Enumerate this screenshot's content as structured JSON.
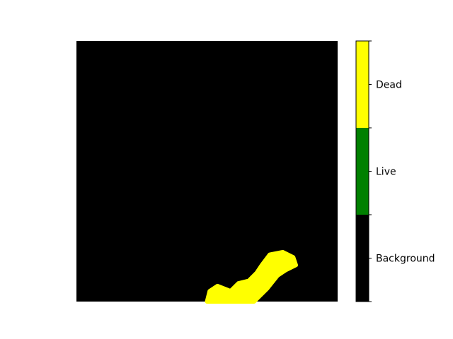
{
  "chart_data": {
    "type": "heatmap",
    "title": "",
    "xlabel": "",
    "ylabel": "",
    "axes_visible": false,
    "classes": [
      {
        "value": 0,
        "label": "Background",
        "color": "#000000"
      },
      {
        "value": 1,
        "label": "Live",
        "color": "#008000"
      },
      {
        "value": 2,
        "label": "Dead",
        "color": "#ffff00"
      }
    ],
    "colorbar": {
      "position": "right",
      "ticks": [
        "Background",
        "Live",
        "Dead"
      ]
    },
    "regions": [
      {
        "class": "Dead",
        "description_points_normalized_image": [
          [
            0.5,
            1.0
          ],
          [
            0.51,
            0.96
          ],
          [
            0.54,
            0.94
          ],
          [
            0.59,
            0.96
          ],
          [
            0.62,
            0.93
          ],
          [
            0.66,
            0.92
          ],
          [
            0.69,
            0.89
          ],
          [
            0.71,
            0.86
          ],
          [
            0.74,
            0.82
          ],
          [
            0.79,
            0.81
          ],
          [
            0.83,
            0.83
          ],
          [
            0.84,
            0.86
          ],
          [
            0.8,
            0.88
          ],
          [
            0.77,
            0.9
          ],
          [
            0.73,
            0.95
          ],
          [
            0.7,
            0.98
          ],
          [
            0.68,
            1.0
          ]
        ]
      }
    ]
  }
}
